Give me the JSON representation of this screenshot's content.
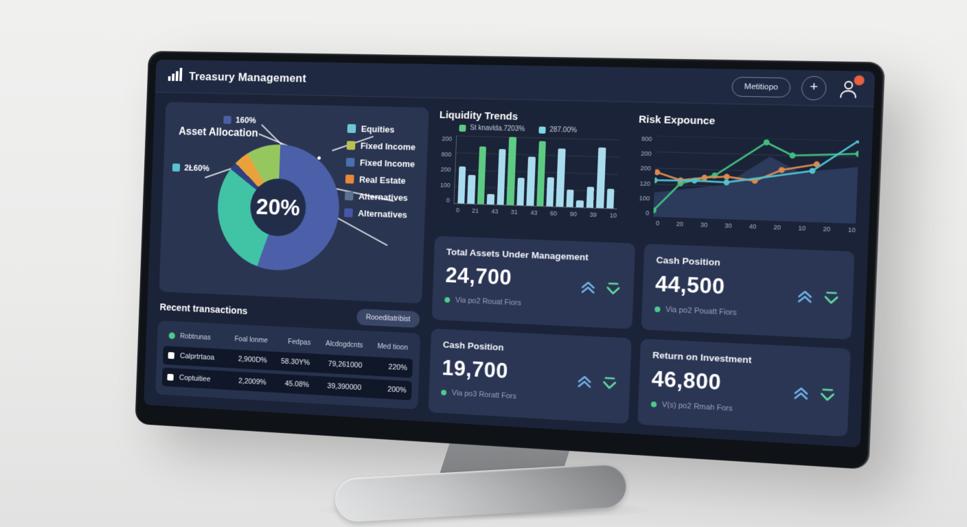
{
  "app": {
    "title": "Treasury Management"
  },
  "header": {
    "menu_label": "Metitiopo",
    "add_label": "+"
  },
  "colors": {
    "screen_bg": "#1b2338",
    "panel": "#2a3552",
    "card": "#2b3654",
    "accent_up": "#6fb1e8",
    "accent_down": "#5fd9a0",
    "note_dot": "#4ecb8d",
    "notification_badge": "#e8603f",
    "bar_blue": "#a9dcec",
    "bar_green": "#5ecb82"
  },
  "chart_data": [
    {
      "id": "asset-allocation",
      "type": "pie",
      "title": "Asset Allocation",
      "center_label": "20%",
      "slices": [
        {
          "label": "Equities",
          "value": 55,
          "color": "#4b60a8"
        },
        {
          "label": "Fixed Income",
          "value": 30,
          "color": "#41c3a6"
        },
        {
          "label": "Alternatives",
          "value": 2,
          "color": "#31407f"
        },
        {
          "label": "Real Estate",
          "value": 4,
          "color": "#e9a23b"
        },
        {
          "label": "Fixed Income",
          "value": 9,
          "color": "#96c75f"
        }
      ],
      "legend": [
        {
          "label": "Equities",
          "color": "#6fc8d6"
        },
        {
          "label": "Fixed Income",
          "color": "#b8c14e"
        },
        {
          "label": "Fixed Income",
          "color": "#4a6fae"
        },
        {
          "label": "Real Estate",
          "color": "#e8883a"
        },
        {
          "label": "Alternatives",
          "color": "#5b7290"
        },
        {
          "label": "Alternatives",
          "color": "#4657a8"
        }
      ],
      "callouts": [
        {
          "label": "160%",
          "color": "#4a5fa8"
        },
        {
          "label": "2Ł60%",
          "color": "#59c3cf"
        }
      ]
    },
    {
      "id": "liquidity-trends",
      "type": "bar",
      "title": "Liquidity Trends",
      "legend": [
        {
          "label": "St knavlda.7203%",
          "color": "#5ecb82"
        },
        {
          "label": "287.00%",
          "color": "#7fd6e8"
        }
      ],
      "y_ticks": [
        "200",
        "800",
        "200",
        "100",
        "0"
      ],
      "x_ticks": [
        "0",
        "21",
        "43",
        "31",
        "43",
        "60",
        "90",
        "39",
        "10"
      ],
      "values": [
        55,
        42,
        85,
        15,
        82,
        100,
        40,
        72,
        95,
        42,
        85,
        25,
        10,
        30,
        88,
        28
      ],
      "colors": [
        "blue",
        "blue",
        "green",
        "blue",
        "blue",
        "green",
        "blue",
        "blue",
        "green",
        "blue",
        "blue",
        "blue",
        "blue",
        "blue",
        "blue",
        "blue"
      ],
      "bar_colors": {
        "blue": "#a9dcec",
        "green": "#5ecb82"
      }
    },
    {
      "id": "risk-expounce",
      "type": "line",
      "title": "Risk Expounce",
      "y_ticks": [
        "800",
        "200",
        "200",
        "120",
        "100",
        "0"
      ],
      "x_ticks": [
        "0",
        "20",
        "30",
        "30",
        "40",
        "20",
        "10",
        "20",
        "10"
      ],
      "series": [
        {
          "name": "baseline-area",
          "type": "area",
          "color": "#2c3a5c",
          "points": [
            [
              0,
              30
            ],
            [
              35,
              42
            ],
            [
              57,
              78
            ],
            [
              72,
              60
            ],
            [
              100,
              68
            ]
          ]
        },
        {
          "name": "green-series",
          "color": "#3fbf7f",
          "points": [
            [
              0,
              8
            ],
            [
              13,
              42
            ],
            [
              30,
              53
            ],
            [
              55,
              95
            ],
            [
              68,
              80
            ],
            [
              100,
              84
            ]
          ]
        },
        {
          "name": "orange-series",
          "color": "#dd8a4e",
          "points": [
            [
              1,
              55
            ],
            [
              13,
              46
            ],
            [
              25,
              50
            ],
            [
              36,
              52
            ],
            [
              50,
              48
            ],
            [
              63,
              62
            ],
            [
              80,
              70
            ]
          ]
        },
        {
          "name": "teal-series",
          "color": "#4fc3cf",
          "points": [
            [
              0,
              45
            ],
            [
              20,
              46
            ],
            [
              36,
              45
            ],
            [
              78,
              62
            ],
            [
              100,
              100
            ]
          ]
        }
      ]
    }
  ],
  "kpi_cards": [
    {
      "title": "Total Assets Under Management",
      "value": "24,700",
      "note": "Via po2 Rouat Fiors"
    },
    {
      "title": "Cash Position",
      "value": "44,500",
      "note": "Via po2 Pouatt Fiors"
    },
    {
      "title": "Cash Position",
      "value": "19,700",
      "note": "Via po3 Roratt Fors"
    },
    {
      "title": "Return on Investment",
      "value": "46,800",
      "note": "V(s) po2 Rmah Fors"
    }
  ],
  "transactions": {
    "title": "Recent transactions",
    "button_label": "Rooeditatribist",
    "columns": [
      "Robtrunas",
      "Foal lonme",
      "Fedpas",
      "Alcdogdcnts",
      "Med tioon"
    ],
    "rows": [
      [
        "Calprtrtaoa",
        "2,900D%",
        "58.30Y%",
        "79,261000",
        "220%"
      ],
      [
        "Coptuitiee",
        "2,2009%",
        "45.08%",
        "39,390000",
        "200%"
      ]
    ]
  }
}
